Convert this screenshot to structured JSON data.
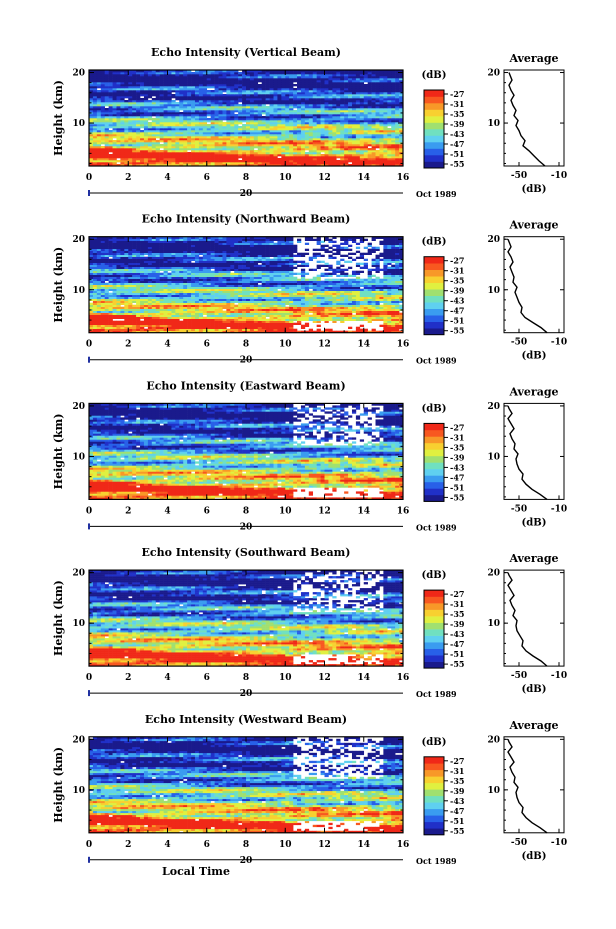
{
  "figure": {
    "xlabel": "Local Time",
    "date_label": "20",
    "month_label": "Oct 1989"
  },
  "colors": {
    "scale": [
      "#1a1a8c",
      "#2030c8",
      "#2860e8",
      "#3a9cf0",
      "#5fd0f0",
      "#70e0c0",
      "#a0e070",
      "#e0f040",
      "#f8d030",
      "#f89828",
      "#f85820",
      "#f02818"
    ],
    "background": "#ffffff"
  },
  "chart_data": [
    {
      "type": "heatmap",
      "title": "Echo Intensity (Vertical Beam)",
      "ylabel": "Height (km)",
      "x_ticks": [
        "0",
        "2",
        "4",
        "6",
        "8",
        "10",
        "12",
        "14",
        "16"
      ],
      "y_ticks": [
        "10",
        "20"
      ],
      "xlim": [
        0,
        16
      ],
      "ylim": [
        1.5,
        20.5
      ],
      "colorbar": {
        "label": "(dB)",
        "ticks": [
          "-27",
          "-31",
          "-35",
          "-39",
          "-43",
          "-47",
          "-51",
          "-55"
        ]
      },
      "blanked_region": null,
      "average": {
        "title": "Average",
        "xlabel": "(dB)",
        "x_ticks": [
          "-50",
          "-10"
        ],
        "y_ticks": [
          "10",
          "20"
        ],
        "xlim": [
          -65,
          -5
        ],
        "profile": [
          [
            -24,
            1.5
          ],
          [
            -30,
            2.5
          ],
          [
            -35,
            3.5
          ],
          [
            -40,
            4.5
          ],
          [
            -46,
            5.5
          ],
          [
            -44,
            6.5
          ],
          [
            -48,
            7.5
          ],
          [
            -50,
            8.5
          ],
          [
            -53,
            9.5
          ],
          [
            -51,
            10.5
          ],
          [
            -55,
            11.5
          ],
          [
            -53,
            12.5
          ],
          [
            -56,
            13.5
          ],
          [
            -58,
            14.5
          ],
          [
            -55,
            15.5
          ],
          [
            -58,
            16.5
          ],
          [
            -60,
            17.5
          ],
          [
            -57,
            18.5
          ],
          [
            -59,
            19.5
          ],
          [
            -60,
            20
          ]
        ]
      }
    },
    {
      "type": "heatmap",
      "title": "Echo Intensity (Northward Beam)",
      "ylabel": "Height (km)",
      "x_ticks": [
        "0",
        "2",
        "4",
        "6",
        "8",
        "10",
        "12",
        "14",
        "16"
      ],
      "y_ticks": [
        "10",
        "20"
      ],
      "xlim": [
        0,
        16
      ],
      "ylim": [
        1.5,
        20.5
      ],
      "colorbar": {
        "label": "(dB)",
        "ticks": [
          "-27",
          "-31",
          "-35",
          "-39",
          "-43",
          "-47",
          "-51",
          "-55"
        ]
      },
      "blanked_region": {
        "x": [
          10.5,
          15
        ],
        "y_high": [
          12,
          20.5
        ],
        "y_low": [
          2,
          4
        ]
      },
      "average": {
        "title": "Average",
        "xlabel": "(dB)",
        "x_ticks": [
          "-50",
          "-10"
        ],
        "y_ticks": [
          "10",
          "20"
        ],
        "xlim": [
          -65,
          -5
        ],
        "profile": [
          [
            -22,
            1.5
          ],
          [
            -28,
            2.5
          ],
          [
            -36,
            3.5
          ],
          [
            -44,
            4.5
          ],
          [
            -48,
            5.5
          ],
          [
            -47,
            6.5
          ],
          [
            -50,
            7.5
          ],
          [
            -52,
            8.5
          ],
          [
            -54,
            9.5
          ],
          [
            -52,
            10.5
          ],
          [
            -56,
            11.5
          ],
          [
            -55,
            12.5
          ],
          [
            -57,
            13.5
          ],
          [
            -59,
            14.5
          ],
          [
            -56,
            15.5
          ],
          [
            -58,
            16.5
          ],
          [
            -61,
            17.5
          ],
          [
            -58,
            18.5
          ],
          [
            -60,
            19.5
          ],
          [
            -61,
            20
          ]
        ]
      }
    },
    {
      "type": "heatmap",
      "title": "Echo Intensity (Eastward Beam)",
      "ylabel": "Height (km)",
      "x_ticks": [
        "0",
        "2",
        "4",
        "6",
        "8",
        "10",
        "12",
        "14",
        "16"
      ],
      "y_ticks": [
        "10",
        "20"
      ],
      "xlim": [
        0,
        16
      ],
      "ylim": [
        1.5,
        20.5
      ],
      "colorbar": {
        "label": "(dB)",
        "ticks": [
          "-27",
          "-31",
          "-35",
          "-39",
          "-43",
          "-47",
          "-51",
          "-55"
        ]
      },
      "blanked_region": {
        "x": [
          10.5,
          15
        ],
        "y_high": [
          12,
          20.5
        ],
        "y_low": [
          2,
          4
        ]
      },
      "average": {
        "title": "Average",
        "xlabel": "(dB)",
        "x_ticks": [
          "-50",
          "-10"
        ],
        "y_ticks": [
          "10",
          "20"
        ],
        "xlim": [
          -65,
          -5
        ],
        "profile": [
          [
            -22,
            1.5
          ],
          [
            -29,
            2.5
          ],
          [
            -37,
            3.5
          ],
          [
            -43,
            4.5
          ],
          [
            -47,
            5.5
          ],
          [
            -46,
            6.5
          ],
          [
            -50,
            7.5
          ],
          [
            -52,
            8.5
          ],
          [
            -53,
            9.5
          ],
          [
            -51,
            10.5
          ],
          [
            -55,
            11.5
          ],
          [
            -54,
            12.5
          ],
          [
            -57,
            13.5
          ],
          [
            -59,
            14.5
          ],
          [
            -55,
            15.5
          ],
          [
            -58,
            16.5
          ],
          [
            -61,
            17.5
          ],
          [
            -57,
            18.5
          ],
          [
            -60,
            19.5
          ],
          [
            -61,
            20
          ]
        ]
      }
    },
    {
      "type": "heatmap",
      "title": "Echo Intensity (Southward Beam)",
      "ylabel": "Height (km)",
      "x_ticks": [
        "0",
        "2",
        "4",
        "6",
        "8",
        "10",
        "12",
        "14",
        "16"
      ],
      "y_ticks": [
        "10",
        "20"
      ],
      "xlim": [
        0,
        16
      ],
      "ylim": [
        1.5,
        20.5
      ],
      "colorbar": {
        "label": "(dB)",
        "ticks": [
          "-27",
          "-31",
          "-35",
          "-39",
          "-43",
          "-47",
          "-51",
          "-55"
        ]
      },
      "blanked_region": {
        "x": [
          10.5,
          15
        ],
        "y_high": [
          12,
          20.5
        ],
        "y_low": [
          2,
          4
        ]
      },
      "average": {
        "title": "Average",
        "xlabel": "(dB)",
        "x_ticks": [
          "-50",
          "-10"
        ],
        "y_ticks": [
          "10",
          "20"
        ],
        "xlim": [
          -65,
          -5
        ],
        "profile": [
          [
            -22,
            1.5
          ],
          [
            -28,
            2.5
          ],
          [
            -36,
            3.5
          ],
          [
            -43,
            4.5
          ],
          [
            -47,
            5.5
          ],
          [
            -46,
            6.5
          ],
          [
            -49,
            7.5
          ],
          [
            -52,
            8.5
          ],
          [
            -53,
            9.5
          ],
          [
            -52,
            10.5
          ],
          [
            -56,
            11.5
          ],
          [
            -54,
            12.5
          ],
          [
            -57,
            13.5
          ],
          [
            -59,
            14.5
          ],
          [
            -55,
            15.5
          ],
          [
            -58,
            16.5
          ],
          [
            -61,
            17.5
          ],
          [
            -57,
            18.5
          ],
          [
            -60,
            19.5
          ],
          [
            -61,
            20
          ]
        ]
      }
    },
    {
      "type": "heatmap",
      "title": "Echo Intensity (Westward Beam)",
      "ylabel": "Height (km)",
      "x_ticks": [
        "0",
        "2",
        "4",
        "6",
        "8",
        "10",
        "12",
        "14",
        "16"
      ],
      "y_ticks": [
        "10",
        "20"
      ],
      "xlim": [
        0,
        16
      ],
      "ylim": [
        1.5,
        20.5
      ],
      "colorbar": {
        "label": "(dB)",
        "ticks": [
          "-27",
          "-31",
          "-35",
          "-39",
          "-43",
          "-47",
          "-51",
          "-55"
        ]
      },
      "blanked_region": {
        "x": [
          10.5,
          15
        ],
        "y_high": [
          12,
          20.5
        ],
        "y_low": [
          2,
          4
        ]
      },
      "average": {
        "title": "Average",
        "xlabel": "(dB)",
        "x_ticks": [
          "-50",
          "-10"
        ],
        "y_ticks": [
          "10",
          "20"
        ],
        "xlim": [
          -65,
          -5
        ],
        "profile": [
          [
            -22,
            1.5
          ],
          [
            -29,
            2.5
          ],
          [
            -37,
            3.5
          ],
          [
            -43,
            4.5
          ],
          [
            -47,
            5.5
          ],
          [
            -46,
            6.5
          ],
          [
            -50,
            7.5
          ],
          [
            -52,
            8.5
          ],
          [
            -53,
            9.5
          ],
          [
            -51,
            10.5
          ],
          [
            -55,
            11.5
          ],
          [
            -54,
            12.5
          ],
          [
            -57,
            13.5
          ],
          [
            -59,
            14.5
          ],
          [
            -55,
            15.5
          ],
          [
            -58,
            16.5
          ],
          [
            -61,
            17.5
          ],
          [
            -57,
            18.5
          ],
          [
            -60,
            19.5
          ],
          [
            -61,
            20
          ]
        ]
      }
    }
  ]
}
